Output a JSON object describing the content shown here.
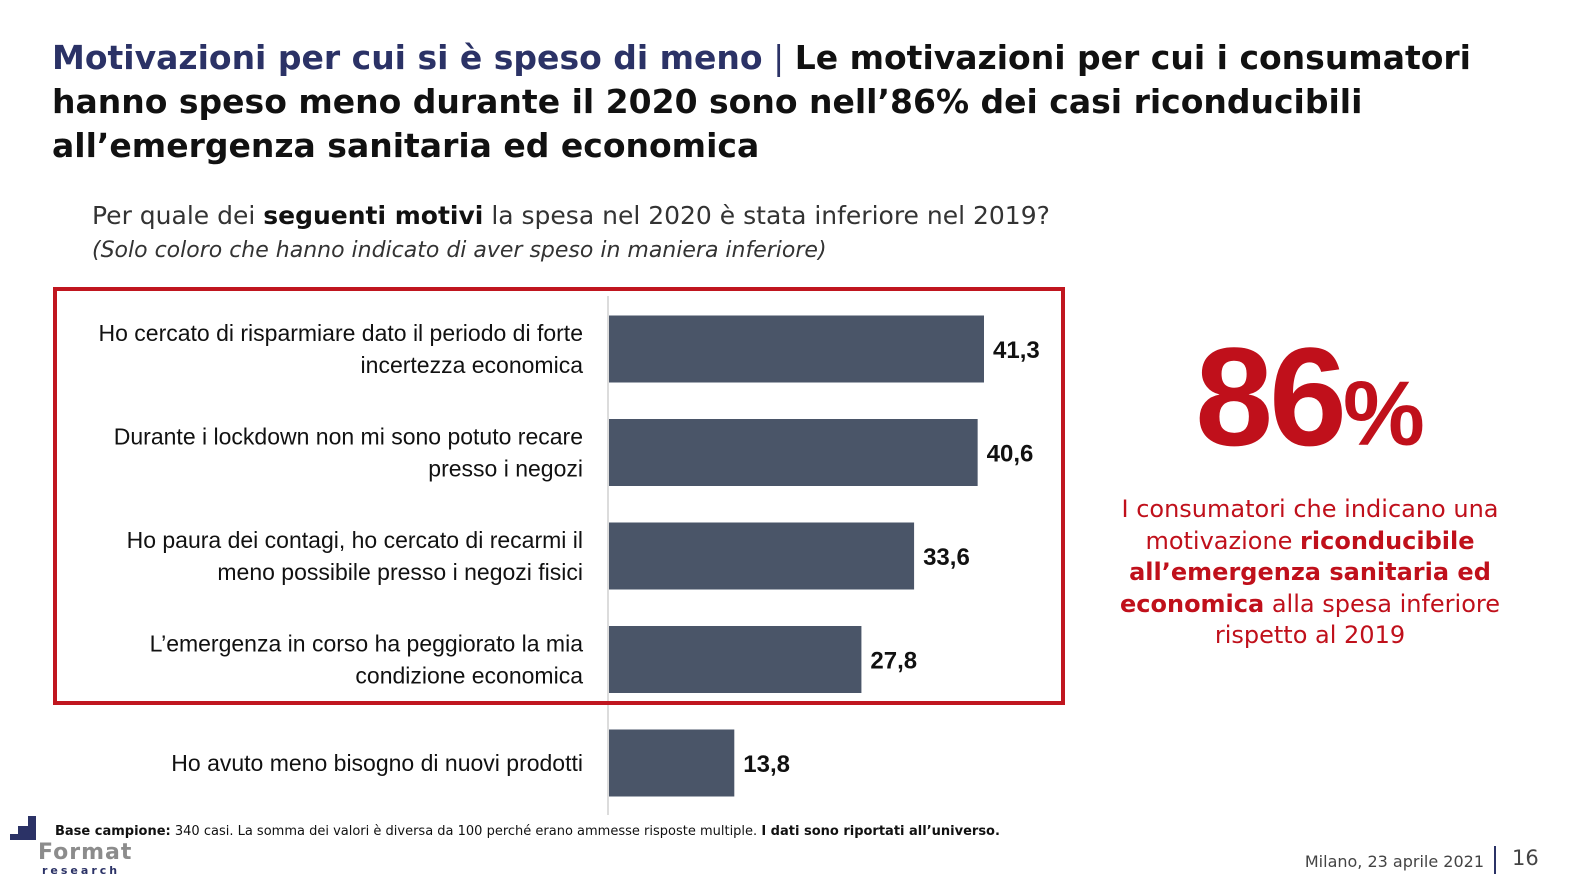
{
  "header": {
    "title_main": "Motivazioni per cui si è speso di meno",
    "title_sep": " | ",
    "title_rest": " Le motivazioni per cui i consumatori hanno speso meno durante il 2020 sono nell’86% dei casi riconducibili all’emergenza sanitaria ed economica"
  },
  "question": {
    "prefix": "Per quale dei ",
    "bold": "seguenti motivi",
    "suffix": " la spesa nel 2020 è stata inferiore nel 2019?",
    "note": "(Solo coloro che hanno indicato di aver speso in maniera inferiore)"
  },
  "chart_data": {
    "type": "bar",
    "orientation": "horizontal",
    "categories": [
      [
        "Ho cercato di risparmiare dato il periodo di forte",
        "incertezza economica"
      ],
      [
        "Durante i lockdown non mi sono potuto recare",
        "presso i negozi"
      ],
      [
        "Ho paura dei contagi, ho cercato di recarmi il",
        "meno possibile presso i negozi fisici"
      ],
      [
        "L’emergenza in corso ha peggiorato la mia",
        "condizione economica"
      ],
      [
        "Ho avuto meno bisogno di nuovi prodotti"
      ]
    ],
    "values": [
      41.3,
      40.6,
      33.6,
      27.8,
      13.8
    ],
    "value_labels": [
      "41,3",
      "40,6",
      "33,6",
      "27,8",
      "13,8"
    ],
    "bar_color": "#4a5568",
    "highlighted_first_n": 4,
    "highlight_color": "#c0161f"
  },
  "side_panel": {
    "big_number": "86",
    "big_pct": "%",
    "text_1": "I consumatori che indicano una motivazione ",
    "text_bold": "riconducibile all’emergenza sanitaria ed economica",
    "text_2": " alla spesa inferiore rispetto al 2019"
  },
  "footer": {
    "base_label": "Base campione:",
    "base_text": " 340 casi. La somma dei valori è diversa da 100 perché erano ammesse risposte multiple. ",
    "base_bold": "I dati sono riportati all’universo.",
    "logo_word": "Format",
    "logo_sub": "research",
    "date": "Milano, 23 aprile 2021",
    "page": "16"
  }
}
